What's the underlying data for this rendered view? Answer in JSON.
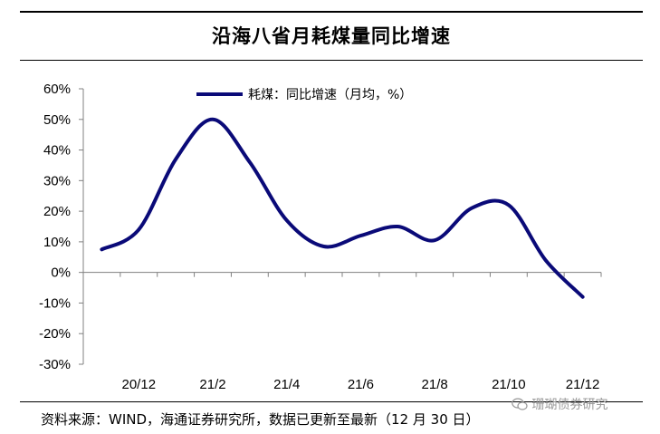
{
  "title": "沿海八省月耗煤量同比增速",
  "source": "资料来源：WIND，海通证券研究所，数据已更新至最新（12 月 30 日）",
  "watermark": "珊瑚债券研究",
  "chart_data": {
    "type": "line",
    "title": "沿海八省月耗煤量同比增速",
    "x": [
      "20/11",
      "20/12",
      "21/01",
      "21/02",
      "21/03",
      "21/04",
      "21/05",
      "21/06",
      "21/07",
      "21/08",
      "21/09",
      "21/10",
      "21/11",
      "21/12"
    ],
    "x_tick_labels": [
      "20/12",
      "21/2",
      "21/4",
      "21/6",
      "21/8",
      "21/10",
      "21/12"
    ],
    "series": [
      {
        "name": "耗煤：同比增速（月均，%）",
        "color": "#0a0a78",
        "values": [
          7.5,
          14,
          37,
          50,
          36,
          17,
          8.5,
          12,
          15,
          10.5,
          21,
          22,
          4,
          -8
        ]
      }
    ],
    "y_tick_labels": [
      "60%",
      "50%",
      "40%",
      "30%",
      "20%",
      "10%",
      "0%",
      "-10%",
      "-20%",
      "-30%"
    ],
    "ylim": [
      -30,
      60
    ],
    "y_unit": "%",
    "grid": false,
    "legend_position": "top"
  }
}
